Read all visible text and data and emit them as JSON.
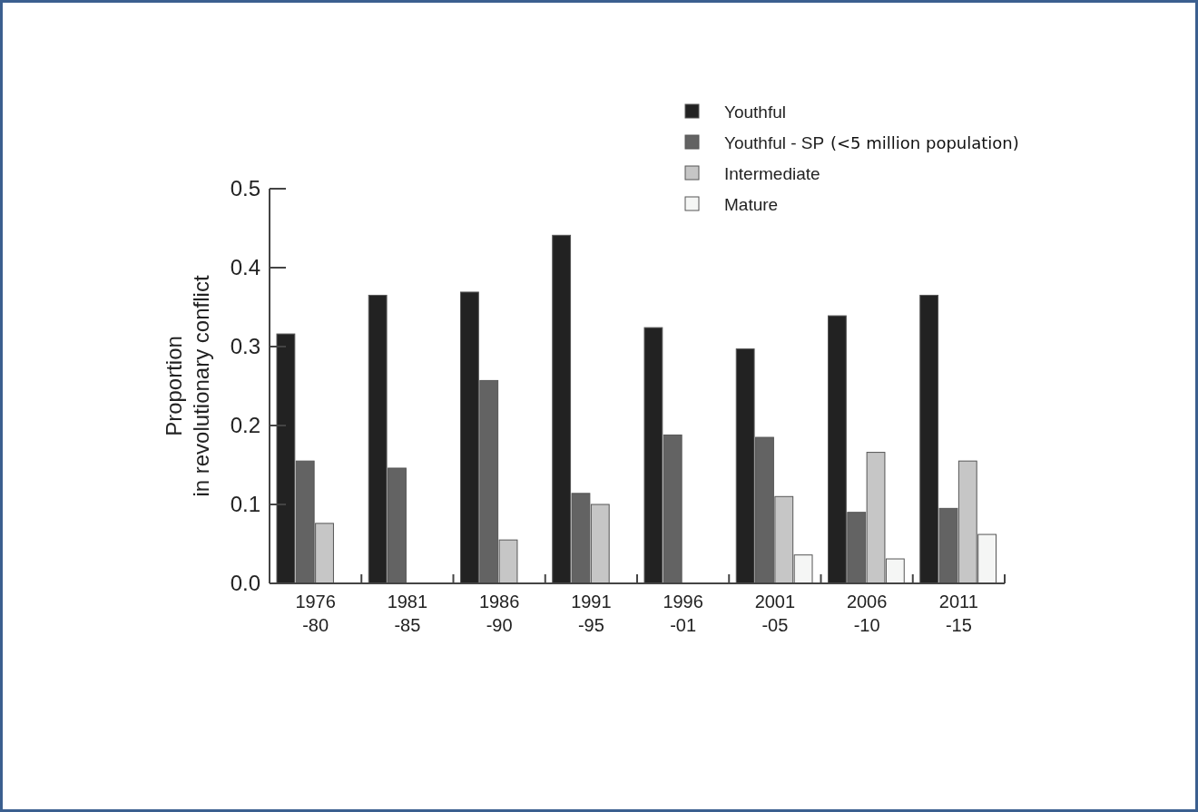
{
  "chart_data": {
    "type": "bar",
    "ylabel": "Proportion\nin revolutionary conflict",
    "categories": [
      "1976\n-80",
      "1981\n-85",
      "1986\n-90",
      "1991\n-95",
      "1996\n-01",
      "2001\n-05",
      "2006\n-10",
      "2011\n-15"
    ],
    "series": [
      {
        "name": "Youthful",
        "color": "#222222",
        "values": [
          0.316,
          0.365,
          0.369,
          0.441,
          0.324,
          0.297,
          0.339,
          0.365
        ]
      },
      {
        "name": "Youthful - SP",
        "color": "#636363",
        "values": [
          0.155,
          0.146,
          0.257,
          0.114,
          0.188,
          0.185,
          0.09,
          0.095
        ]
      },
      {
        "name": "Intermediate",
        "color": "#c6c6c6",
        "values": [
          0.076,
          0,
          0.055,
          0.1,
          0,
          0.11,
          0.166,
          0.155
        ]
      },
      {
        "name": "Mature",
        "color": "#f5f6f5",
        "values": [
          0,
          0,
          0,
          0,
          0,
          0.036,
          0.031,
          0.062
        ]
      }
    ],
    "annotations": [
      "(<5 million population)"
    ],
    "ylim": [
      0,
      0.5
    ],
    "yticks": [
      {
        "value": 0,
        "label": "0.0"
      },
      {
        "value": 0.1,
        "label": "0.1"
      },
      {
        "value": 0.2,
        "label": "0.2"
      },
      {
        "value": 0.3,
        "label": "0.3"
      },
      {
        "value": 0.4,
        "label": "0.4"
      },
      {
        "value": 0.5,
        "label": "0.5"
      }
    ],
    "legend": "top right",
    "grid": false
  }
}
